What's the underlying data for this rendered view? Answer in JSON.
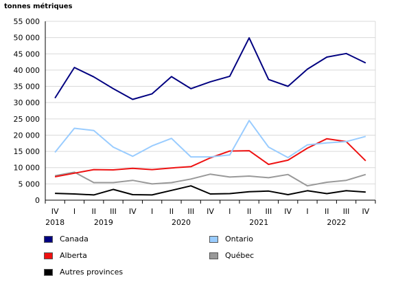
{
  "chart_data": {
    "type": "line",
    "y_unit_label": "tonnes métriques",
    "title": "",
    "xlabel": "",
    "ylabel": "",
    "ylim": [
      0,
      55000
    ],
    "y_ticks": [
      0,
      5000,
      10000,
      15000,
      20000,
      25000,
      30000,
      35000,
      40000,
      45000,
      50000,
      55000
    ],
    "y_tick_labels": [
      "0",
      "5 000",
      "10 000",
      "15 000",
      "20 000",
      "25 000",
      "30 000",
      "35 000",
      "40 000",
      "45 000",
      "50 000",
      "55 000"
    ],
    "x": [
      "IV",
      "I",
      "II",
      "III",
      "IV",
      "I",
      "II",
      "III",
      "IV",
      "I",
      "II",
      "III",
      "IV",
      "I",
      "II",
      "III",
      "IV"
    ],
    "years": [
      {
        "label": "2018",
        "from": 0,
        "to": 0
      },
      {
        "label": "2019",
        "from": 1,
        "to": 4
      },
      {
        "label": "2020",
        "from": 5,
        "to": 8
      },
      {
        "label": "2021",
        "from": 9,
        "to": 12
      },
      {
        "label": "2022",
        "from": 13,
        "to": 16
      }
    ],
    "grid": true,
    "legend_position": "bottom",
    "series": [
      {
        "name": "Canada",
        "color": "#000080",
        "values": [
          31400,
          40800,
          37900,
          34300,
          31000,
          32700,
          38000,
          34300,
          36400,
          38100,
          49900,
          37100,
          35000,
          40300,
          44000,
          45100,
          42200
        ]
      },
      {
        "name": "Ontario",
        "color": "#99ccff",
        "values": [
          14700,
          22100,
          21400,
          16300,
          13500,
          16700,
          19000,
          13300,
          13300,
          13900,
          24500,
          16300,
          13100,
          17000,
          17600,
          18000,
          19600
        ]
      },
      {
        "name": "Alberta",
        "color": "#ee1111",
        "values": [
          7200,
          8300,
          9400,
          9300,
          9800,
          9400,
          9900,
          10300,
          13000,
          15100,
          15200,
          11000,
          12300,
          16000,
          18900,
          18000,
          12100
        ]
      },
      {
        "name": "Québec",
        "color": "#999999",
        "values": [
          7500,
          8600,
          5400,
          5400,
          6100,
          5000,
          5400,
          6500,
          8000,
          7100,
          7400,
          6900,
          7900,
          4400,
          5500,
          6100,
          7900
        ]
      },
      {
        "name": "Autres provinces",
        "color": "#000000",
        "values": [
          2100,
          1900,
          1600,
          3300,
          1700,
          1600,
          3000,
          4400,
          1900,
          2000,
          2600,
          2800,
          1700,
          2900,
          2000,
          2900,
          2500
        ]
      }
    ]
  }
}
